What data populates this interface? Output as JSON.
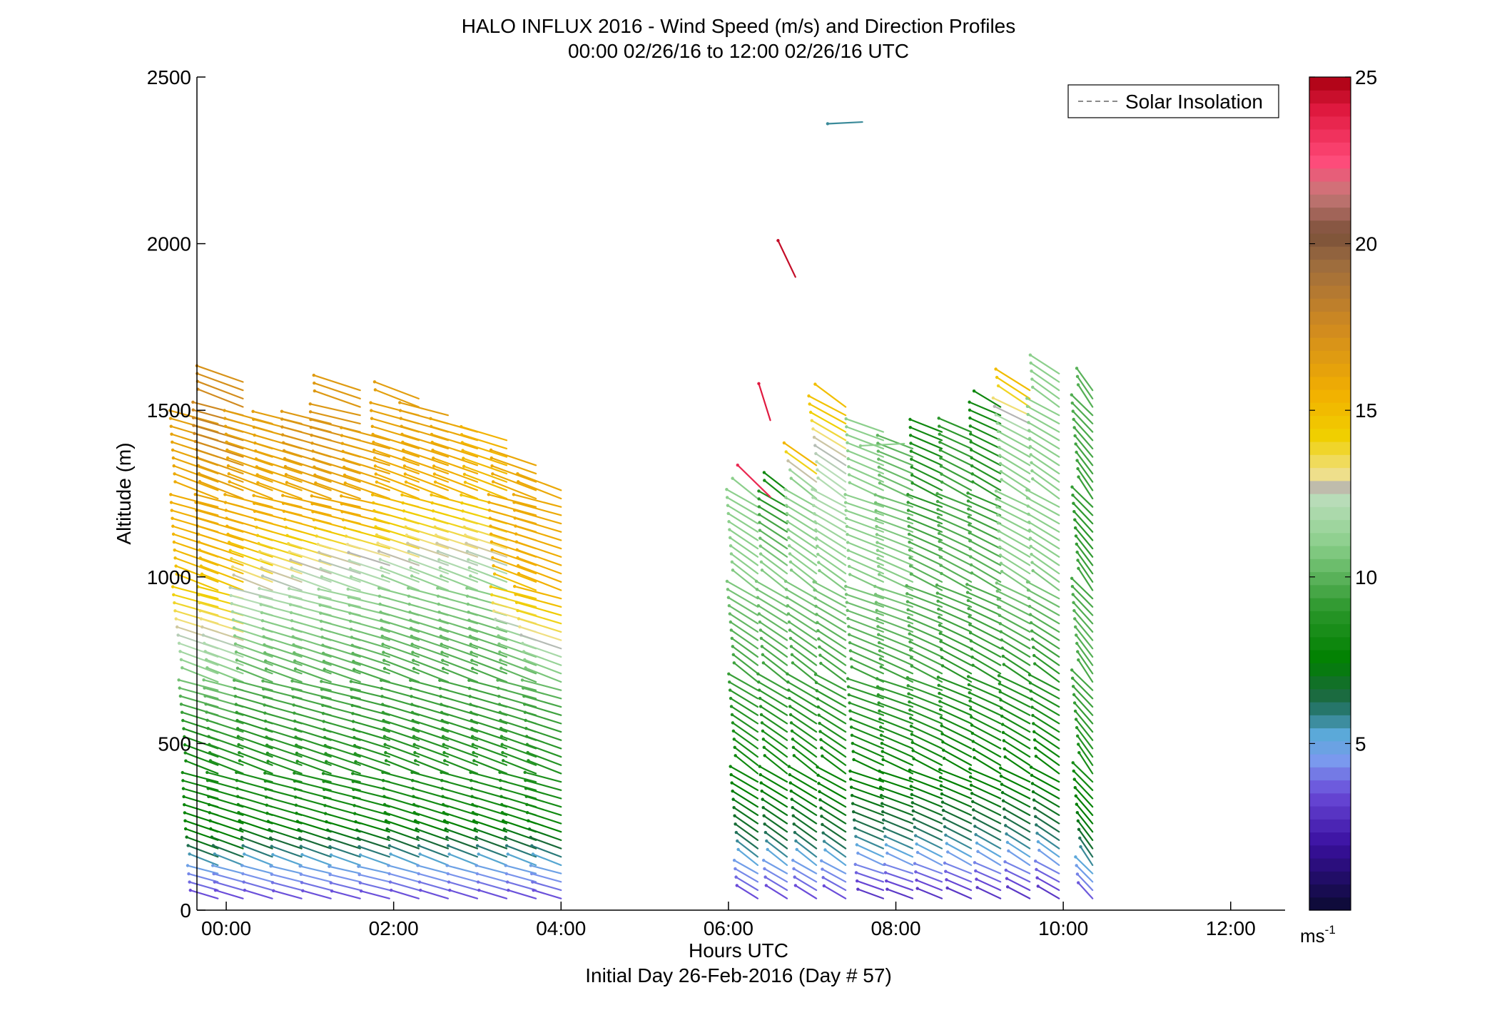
{
  "chart_data": {
    "type": "wind-barb-profile",
    "title": "HALO INFLUX 2016 - Wind Speed (m/s) and Direction Profiles",
    "subtitle": "00:00 02/26/16 to 12:00 02/26/16  UTC",
    "xlabel": "Hours UTC",
    "xlabel2": "Initial Day 26-Feb-2016 (Day # 57)",
    "ylabel": "Altitude (m)",
    "xlim": [
      -0.35,
      12.65
    ],
    "ylim": [
      0,
      2500
    ],
    "x_ticks": [
      0,
      2,
      4,
      6,
      8,
      10,
      12
    ],
    "x_tick_labels": [
      "00:00",
      "02:00",
      "04:00",
      "06:00",
      "08:00",
      "10:00",
      "12:00"
    ],
    "y_ticks": [
      0,
      500,
      1000,
      1500,
      2000,
      2500
    ],
    "y_tick_labels": [
      "0",
      "500",
      "1000",
      "1500",
      "2000",
      "2500"
    ],
    "legend": {
      "label": "Solar Insolation",
      "position": "top-right",
      "style": "dashed",
      "color": "#8a8a8a"
    },
    "colorbar": {
      "range": [
        0,
        25
      ],
      "ticks": [
        5,
        10,
        15,
        20,
        25
      ],
      "tick_labels": [
        "5",
        "10",
        "15",
        "20",
        "25"
      ],
      "unit_base": "ms",
      "unit_exp": "-1",
      "stops": [
        {
          "v": 0,
          "c": "#0a0a30"
        },
        {
          "v": 2,
          "c": "#3a10a0"
        },
        {
          "v": 3.5,
          "c": "#6a4ad8"
        },
        {
          "v": 4.5,
          "c": "#7a9aee"
        },
        {
          "v": 5.3,
          "c": "#5aaad8"
        },
        {
          "v": 5.9,
          "c": "#2a7a7a"
        },
        {
          "v": 6.5,
          "c": "#1a6a3a"
        },
        {
          "v": 7.5,
          "c": "#008000"
        },
        {
          "v": 9,
          "c": "#2a962a"
        },
        {
          "v": 11,
          "c": "#8ccf8c"
        },
        {
          "v": 12.3,
          "c": "#b8ddb8"
        },
        {
          "v": 12.6,
          "c": "#b4b4b4"
        },
        {
          "v": 13.1,
          "c": "#f0e08a"
        },
        {
          "v": 14.2,
          "c": "#f0d000"
        },
        {
          "v": 15.5,
          "c": "#f2b000"
        },
        {
          "v": 17.5,
          "c": "#d08a20"
        },
        {
          "v": 19.5,
          "c": "#9a6a40"
        },
        {
          "v": 20.3,
          "c": "#7a5038"
        },
        {
          "v": 21.5,
          "c": "#c87878"
        },
        {
          "v": 22.5,
          "c": "#ff4a7a"
        },
        {
          "v": 24,
          "c": "#e01a40"
        },
        {
          "v": 25,
          "c": "#a80010"
        }
      ]
    },
    "profiles": [
      {
        "t": -0.1,
        "ztop": 1480,
        "dir": 300,
        "speeds": [
          [
            0,
            3
          ],
          [
            100,
            4.5
          ],
          [
            200,
            7.5
          ],
          [
            500,
            8.5
          ],
          [
            700,
            11
          ],
          [
            850,
            13.5
          ],
          [
            1000,
            15
          ],
          [
            1300,
            16
          ],
          [
            1500,
            16.5
          ]
        ]
      },
      {
        "t": 0.2,
        "ztop": 1600,
        "dir": 300,
        "speeds": [
          [
            0,
            3
          ],
          [
            100,
            4.5
          ],
          [
            200,
            7.5
          ],
          [
            500,
            9
          ],
          [
            700,
            11
          ],
          [
            850,
            13.5
          ],
          [
            1000,
            15
          ],
          [
            1300,
            16.5
          ],
          [
            1400,
            18
          ],
          [
            1600,
            17
          ]
        ]
      },
      {
        "t": 0.55,
        "ztop": 1470,
        "dir": 300,
        "speeds": [
          [
            0,
            3
          ],
          [
            120,
            5
          ],
          [
            250,
            8
          ],
          [
            550,
            9
          ],
          [
            800,
            11
          ],
          [
            950,
            12.6
          ],
          [
            1100,
            15.5
          ],
          [
            1500,
            16.5
          ]
        ]
      },
      {
        "t": 0.9,
        "ztop": 1470,
        "dir": 298,
        "speeds": [
          [
            0,
            3
          ],
          [
            120,
            5
          ],
          [
            250,
            8
          ],
          [
            600,
            9.5
          ],
          [
            850,
            11
          ],
          [
            1000,
            13
          ],
          [
            1150,
            15.5
          ],
          [
            1500,
            16.5
          ]
        ]
      },
      {
        "t": 1.25,
        "ztop": 1470,
        "dir": 298,
        "speeds": [
          [
            0,
            3
          ],
          [
            120,
            5
          ],
          [
            250,
            8
          ],
          [
            600,
            9.5
          ],
          [
            850,
            11
          ],
          [
            1000,
            12.5
          ],
          [
            1150,
            15.5
          ],
          [
            1400,
            17
          ],
          [
            1500,
            16.5
          ]
        ]
      },
      {
        "t": 1.6,
        "ztop": 1560,
        "dir": 297,
        "speeds": [
          [
            0,
            3
          ],
          [
            120,
            5
          ],
          [
            250,
            8
          ],
          [
            600,
            9.5
          ],
          [
            900,
            11
          ],
          [
            1050,
            13
          ],
          [
            1150,
            15.5
          ],
          [
            1400,
            17
          ],
          [
            1600,
            16.5
          ]
        ]
      },
      {
        "t": 1.95,
        "ztop": 1420,
        "dir": 297,
        "speeds": [
          [
            0,
            3
          ],
          [
            120,
            5
          ],
          [
            250,
            8
          ],
          [
            650,
            9.5
          ],
          [
            900,
            11
          ],
          [
            1050,
            12.8
          ],
          [
            1150,
            15.5
          ],
          [
            1450,
            16.5
          ]
        ]
      },
      {
        "t": 2.3,
        "ztop": 1550,
        "dir": 300,
        "speeds": [
          [
            0,
            3
          ],
          [
            120,
            5
          ],
          [
            250,
            8
          ],
          [
            650,
            9.5
          ],
          [
            950,
            11
          ],
          [
            1100,
            14
          ],
          [
            1250,
            15.5
          ],
          [
            1550,
            16.5
          ]
        ]
      },
      {
        "t": 2.65,
        "ztop": 1500,
        "dir": 300,
        "speeds": [
          [
            0,
            3
          ],
          [
            120,
            5
          ],
          [
            250,
            8
          ],
          [
            650,
            9.5
          ],
          [
            950,
            11
          ],
          [
            1100,
            13.5
          ],
          [
            1250,
            15.5
          ],
          [
            1500,
            16.5
          ]
        ]
      },
      {
        "t": 3.0,
        "ztop": 1440,
        "dir": 300,
        "speeds": [
          [
            0,
            3
          ],
          [
            120,
            5
          ],
          [
            250,
            8
          ],
          [
            650,
            9.5
          ],
          [
            950,
            11
          ],
          [
            1100,
            13.5
          ],
          [
            1250,
            15.5
          ],
          [
            1450,
            16
          ]
        ]
      },
      {
        "t": 3.35,
        "ztop": 1430,
        "dir": 300,
        "speeds": [
          [
            0,
            3
          ],
          [
            120,
            5
          ],
          [
            250,
            8
          ],
          [
            650,
            9.5
          ],
          [
            950,
            11
          ],
          [
            1100,
            13.5
          ],
          [
            1250,
            15
          ],
          [
            1450,
            15.5
          ]
        ]
      },
      {
        "t": 3.7,
        "ztop": 1350,
        "dir": 300,
        "speeds": [
          [
            0,
            3
          ],
          [
            120,
            5
          ],
          [
            250,
            8
          ],
          [
            600,
            9.5
          ],
          [
            800,
            11
          ],
          [
            850,
            13
          ],
          [
            1000,
            15.5
          ],
          [
            1350,
            16
          ]
        ]
      },
      {
        "t": 4.0,
        "ztop": 1280,
        "dir": 300,
        "speeds": [
          [
            0,
            3
          ],
          [
            120,
            5
          ],
          [
            250,
            8
          ],
          [
            600,
            9.5
          ],
          [
            750,
            11.5
          ],
          [
            800,
            13
          ],
          [
            950,
            15.5
          ],
          [
            1300,
            16
          ]
        ]
      },
      {
        "t": 6.35,
        "ztop": 1250,
        "dir": 320,
        "speeds": [
          [
            0,
            3
          ],
          [
            100,
            4.5
          ],
          [
            200,
            6.5
          ],
          [
            400,
            8
          ],
          [
            700,
            9.5
          ],
          [
            1000,
            11
          ],
          [
            1250,
            11
          ]
        ]
      },
      {
        "t": 6.7,
        "ztop": 1270,
        "dir": 320,
        "speeds": [
          [
            0,
            3
          ],
          [
            100,
            4.5
          ],
          [
            200,
            6.5
          ],
          [
            400,
            8
          ],
          [
            700,
            9.5
          ],
          [
            1000,
            11
          ],
          [
            1270,
            8
          ]
        ]
      },
      {
        "t": 7.05,
        "ztop": 1350,
        "dir": 320,
        "speeds": [
          [
            0,
            3
          ],
          [
            100,
            4.5
          ],
          [
            200,
            6.5
          ],
          [
            400,
            8
          ],
          [
            700,
            9.5
          ],
          [
            1000,
            11
          ],
          [
            1250,
            11
          ],
          [
            1350,
            16
          ]
        ]
      },
      {
        "t": 7.4,
        "ztop": 1520,
        "dir": 318,
        "speeds": [
          [
            0,
            3
          ],
          [
            100,
            4.5
          ],
          [
            200,
            6.5
          ],
          [
            400,
            8
          ],
          [
            700,
            9.5
          ],
          [
            1000,
            11
          ],
          [
            1350,
            12.6
          ],
          [
            1450,
            14.5
          ],
          [
            1520,
            15
          ]
        ]
      },
      {
        "t": 7.85,
        "ztop": 1440,
        "dir": 305,
        "speeds": [
          [
            0,
            2.5
          ],
          [
            100,
            4
          ],
          [
            200,
            6
          ],
          [
            350,
            7.5
          ],
          [
            700,
            9.5
          ],
          [
            1000,
            11
          ],
          [
            1440,
            11
          ]
        ]
      },
      {
        "t": 8.2,
        "ztop": 1400,
        "dir": 305,
        "speeds": [
          [
            0,
            2.5
          ],
          [
            100,
            4
          ],
          [
            200,
            6
          ],
          [
            350,
            7.5
          ],
          [
            700,
            9.5
          ],
          [
            1000,
            11
          ],
          [
            1400,
            10
          ]
        ]
      },
      {
        "t": 8.55,
        "ztop": 1440,
        "dir": 308,
        "speeds": [
          [
            0,
            2.5
          ],
          [
            100,
            4
          ],
          [
            200,
            6
          ],
          [
            350,
            7.5
          ],
          [
            700,
            9.5
          ],
          [
            1000,
            10
          ],
          [
            1440,
            8
          ]
        ]
      },
      {
        "t": 8.9,
        "ztop": 1440,
        "dir": 310,
        "speeds": [
          [
            0,
            2.5
          ],
          [
            100,
            4
          ],
          [
            200,
            6
          ],
          [
            350,
            7.5
          ],
          [
            700,
            9
          ],
          [
            1000,
            10
          ],
          [
            1440,
            9
          ]
        ]
      },
      {
        "t": 9.25,
        "ztop": 1520,
        "dir": 312,
        "speeds": [
          [
            0,
            2.5
          ],
          [
            100,
            4
          ],
          [
            200,
            6
          ],
          [
            350,
            7.5
          ],
          [
            700,
            9
          ],
          [
            1000,
            10
          ],
          [
            1500,
            8
          ]
        ]
      },
      {
        "t": 9.6,
        "ztop": 1560,
        "dir": 315,
        "speeds": [
          [
            0,
            2.5
          ],
          [
            100,
            4
          ],
          [
            200,
            6
          ],
          [
            350,
            7.5
          ],
          [
            700,
            9
          ],
          [
            1000,
            11
          ],
          [
            1400,
            11
          ],
          [
            1550,
            15
          ]
        ]
      },
      {
        "t": 9.95,
        "ztop": 1620,
        "dir": 318,
        "speeds": [
          [
            0,
            2.5
          ],
          [
            100,
            4
          ],
          [
            200,
            6
          ],
          [
            350,
            7.5
          ],
          [
            700,
            9
          ],
          [
            1000,
            11
          ],
          [
            1600,
            11
          ]
        ]
      },
      {
        "t": 10.35,
        "ztop": 1570,
        "dir": 335,
        "speeds": [
          [
            0,
            3
          ],
          [
            100,
            5
          ],
          [
            200,
            7
          ],
          [
            500,
            9
          ],
          [
            800,
            10
          ],
          [
            1100,
            9
          ],
          [
            1570,
            10
          ]
        ]
      }
    ],
    "highlights": [
      {
        "t": 6.5,
        "z": 1240,
        "dir": 330,
        "speed": 23.5
      },
      {
        "t": 6.5,
        "z": 1470,
        "dir": 350,
        "speed": 24
      },
      {
        "t": 6.8,
        "z": 1900,
        "dir": 345,
        "speed": 24.5
      },
      {
        "t": 7.6,
        "z": 2365,
        "dir": 265,
        "speed": 5.7
      },
      {
        "t": 8.1,
        "z": 1400,
        "dir": 265,
        "speed": 11
      }
    ]
  }
}
